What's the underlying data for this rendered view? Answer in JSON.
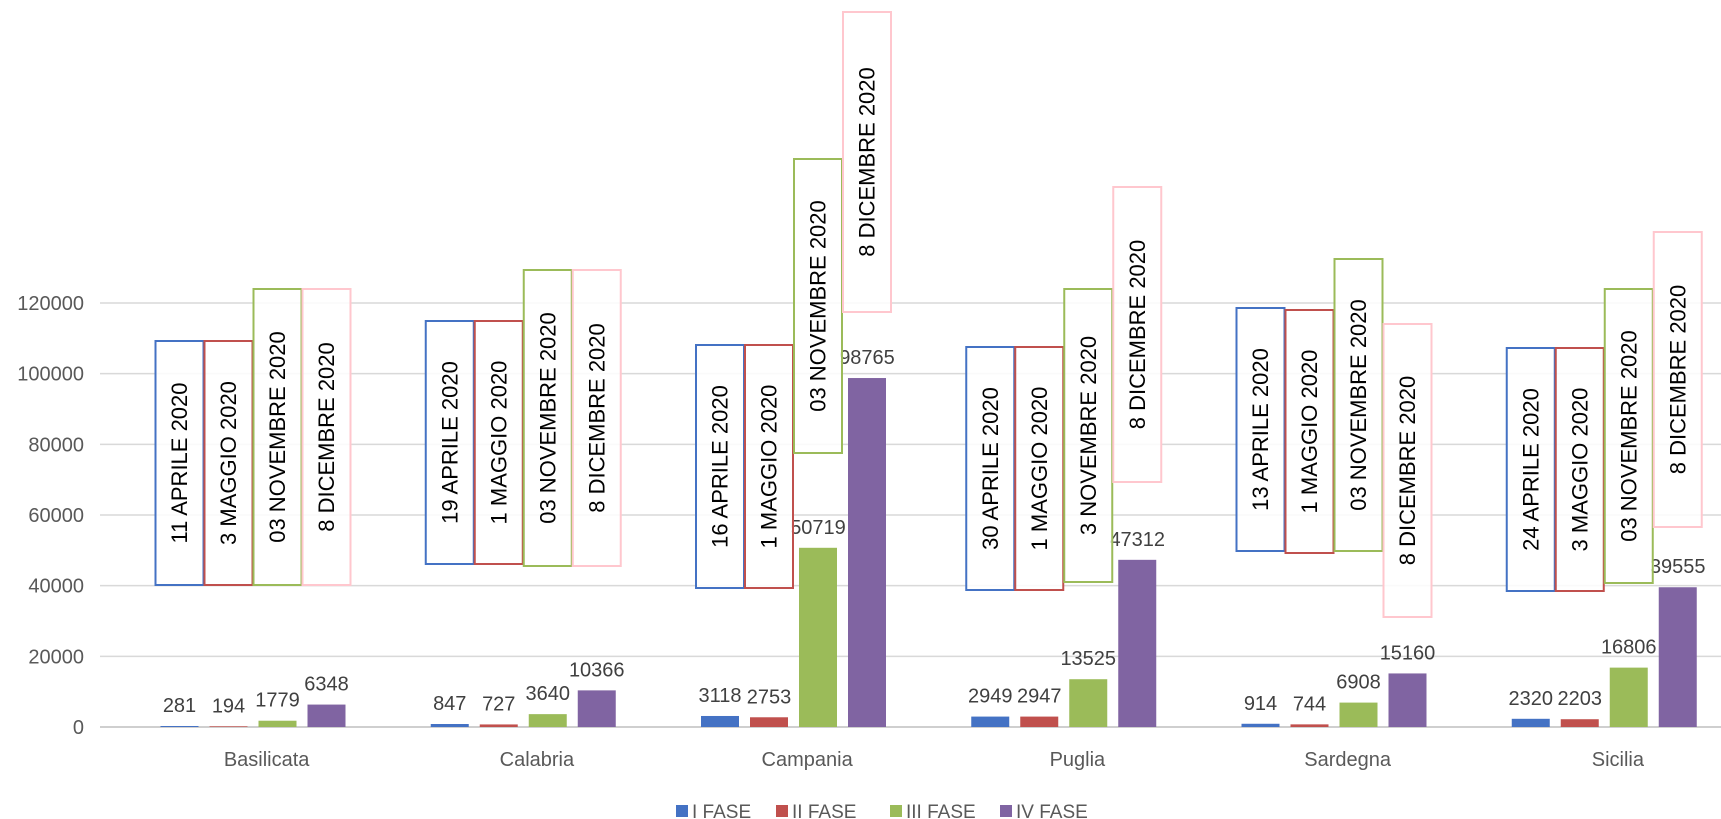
{
  "chart_data": {
    "type": "bar",
    "categories": [
      "Basilicata",
      "Calabria",
      "Campania",
      "Puglia",
      "Sardegna",
      "Sicilia"
    ],
    "series": [
      {
        "name": "I FASE",
        "color": "#4472C4",
        "values": [
          281,
          847,
          3118,
          2949,
          914,
          2320
        ]
      },
      {
        "name": "II FASE",
        "color": "#C0504D",
        "values": [
          194,
          727,
          2753,
          2947,
          744,
          2203
        ]
      },
      {
        "name": "III FASE",
        "color": "#9BBB59",
        "values": [
          1779,
          3640,
          50719,
          13525,
          6908,
          16806
        ]
      },
      {
        "name": "IV FASE",
        "color": "#8064A2",
        "values": [
          6348,
          10366,
          98765,
          47312,
          15160,
          39555
        ]
      }
    ],
    "annotations": [
      [
        "11 APRILE 2020",
        "3 MAGGIO 2020",
        "03 NOVEMBRE 2020",
        "8 DICEMBRE 2020"
      ],
      [
        "19 APRILE 2020",
        "1  MAGGIO 2020",
        "03 NOVEMBRE 2020",
        "8 DICEMBRE 2020"
      ],
      [
        "16 APRILE 2020",
        "1  MAGGIO 2020",
        "03 NOVEMBRE 2020",
        "8 DICEMBRE 2020"
      ],
      [
        "30 APRILE 2020",
        "1  MAGGIO 2020",
        "3 NOVEMBRE 2020",
        "8 DICEMBRE 2020"
      ],
      [
        "13 APRILE 2020",
        "1  MAGGIO 2020",
        "03 NOVEMBRE 2020",
        "8 DICEMBRE 2020"
      ],
      [
        "24 APRILE 2020",
        "3  MAGGIO 2020",
        "03 NOVEMBRE 2020",
        "8 DICEMBRE 2020"
      ]
    ],
    "annotation_border_colors": [
      "#4472C4",
      "#C0504D",
      "#9BBB59",
      "#FFC7CE"
    ],
    "yticks": [
      0,
      20000,
      40000,
      60000,
      80000,
      100000,
      120000
    ],
    "ylim": [
      0,
      120000
    ],
    "grid": true,
    "legend": "bottom",
    "gridline_color": "#D9D9D9",
    "axis_color": "#BFBFBF"
  }
}
